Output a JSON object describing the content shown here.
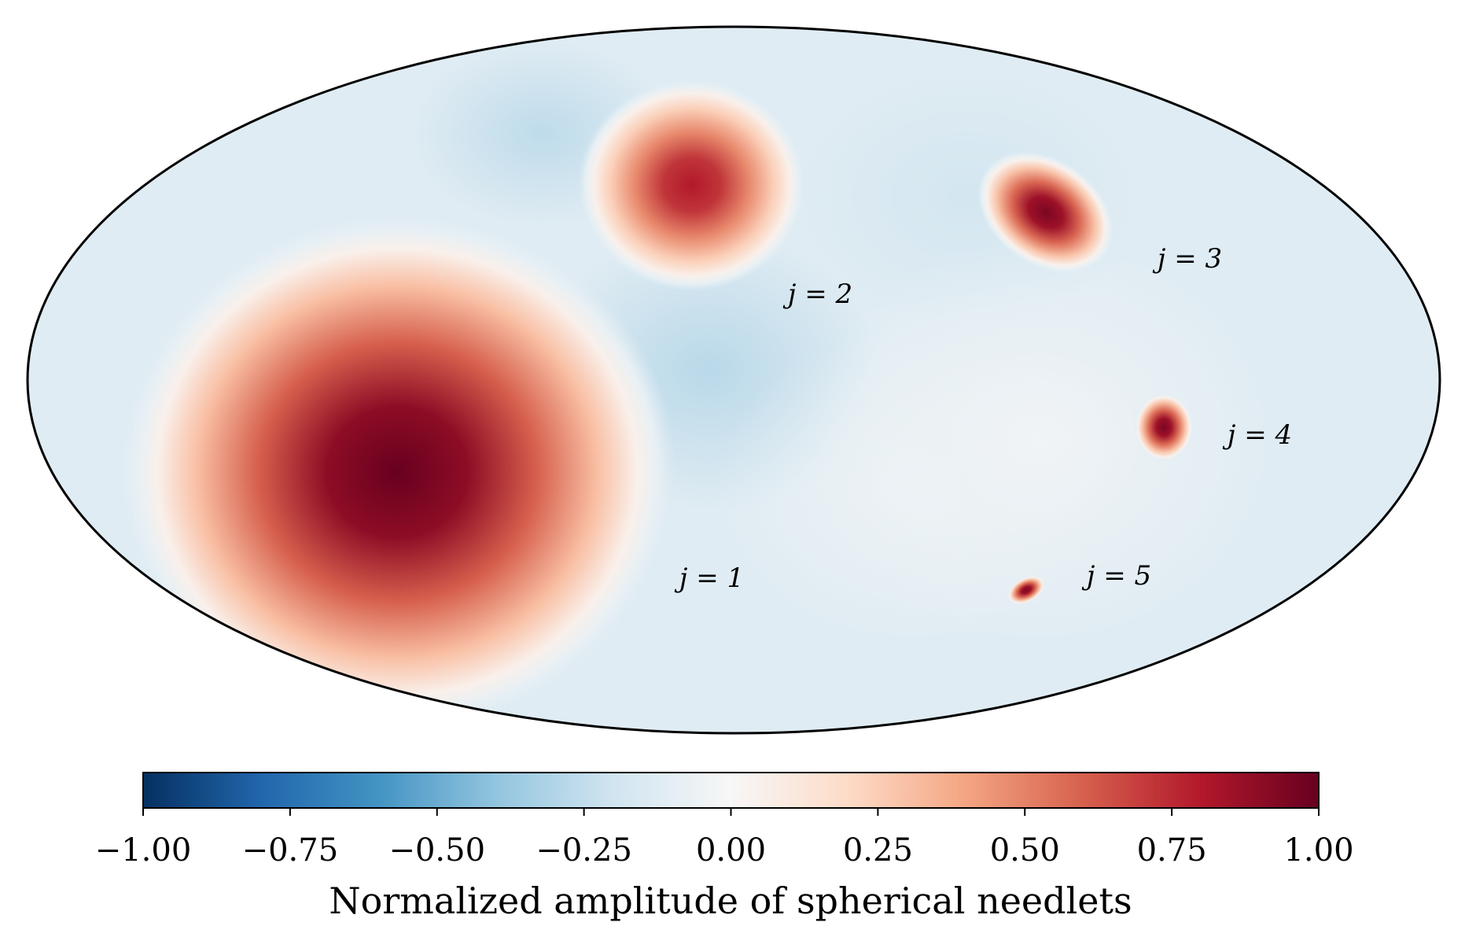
{
  "chart_data": {
    "type": "heatmap",
    "projection": "mollweide",
    "title": "",
    "colormap": "RdBu_r",
    "colorbar": {
      "label": "Normalized amplitude of spherical needlets",
      "range": [
        -1.0,
        1.0
      ],
      "ticks": [
        -1.0,
        -0.75,
        -0.5,
        -0.25,
        0.0,
        0.25,
        0.5,
        0.75,
        1.0
      ],
      "tick_labels": [
        "−1.00",
        "−0.75",
        "−0.50",
        "−0.25",
        "0.00",
        "0.25",
        "0.50",
        "0.75",
        "1.00"
      ],
      "stops": [
        "#053061",
        "#2166ac",
        "#4393c3",
        "#92c5de",
        "#d1e5f0",
        "#f7f7f7",
        "#fddbc7",
        "#f4a582",
        "#d6604d",
        "#b2182b",
        "#67001f"
      ]
    },
    "background_value": -0.12,
    "needlets": [
      {
        "label": "j = 1",
        "j": 1,
        "peak": 1.0
      },
      {
        "label": "j = 2",
        "j": 2,
        "peak": 0.8
      },
      {
        "label": "j = 3",
        "j": 3,
        "peak": 0.95
      },
      {
        "label": "j = 4",
        "j": 4,
        "peak": 0.95
      },
      {
        "label": "j = 5",
        "j": 5,
        "peak": 0.95
      }
    ]
  }
}
